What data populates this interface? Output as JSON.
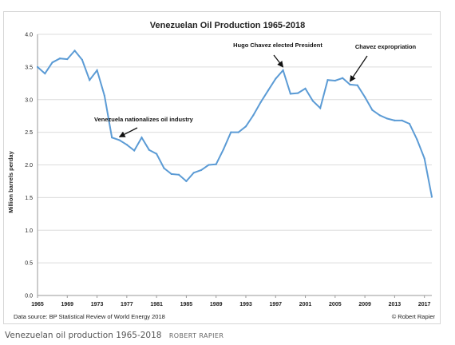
{
  "chart_data": {
    "type": "line",
    "title": "Venezuelan Oil Production 1965-2018",
    "ylabel": "Million barrels perday",
    "xlabel": "",
    "ylim": [
      0,
      4
    ],
    "xlim": [
      1965,
      2018
    ],
    "yticks": [
      "0.0",
      "0.5",
      "1.0",
      "1.5",
      "2.0",
      "2.5",
      "3.0",
      "3.5",
      "4.0"
    ],
    "xticks": [
      "1965",
      "1969",
      "1973",
      "1977",
      "1981",
      "1985",
      "1989",
      "1993",
      "1997",
      "2001",
      "2005",
      "2009",
      "2013",
      "2017"
    ],
    "grid": true,
    "color": "#5b9bd5",
    "series": [
      {
        "x": [
          1965,
          1966,
          1967,
          1968,
          1969,
          1970,
          1971,
          1972,
          1973,
          1974,
          1975,
          1976,
          1977,
          1978,
          1979,
          1980,
          1981,
          1982,
          1983,
          1984,
          1985,
          1986,
          1987,
          1988,
          1989,
          1990,
          1991,
          1992,
          1993,
          1994,
          1995,
          1996,
          1997,
          1998,
          1999,
          2000,
          2001,
          2002,
          2003,
          2004,
          2005,
          2006,
          2007,
          2008,
          2009,
          2010,
          2011,
          2012,
          2013,
          2014,
          2015,
          2016,
          2017,
          2018
        ],
        "values": [
          3.5,
          3.4,
          3.57,
          3.63,
          3.62,
          3.75,
          3.61,
          3.3,
          3.45,
          3.06,
          2.42,
          2.38,
          2.31,
          2.22,
          2.42,
          2.23,
          2.17,
          1.95,
          1.86,
          1.85,
          1.75,
          1.88,
          1.92,
          2.0,
          2.01,
          2.24,
          2.5,
          2.5,
          2.59,
          2.76,
          2.96,
          3.14,
          3.32,
          3.45,
          3.09,
          3.1,
          3.17,
          2.98,
          2.87,
          3.3,
          3.29,
          3.33,
          3.23,
          3.22,
          3.04,
          2.84,
          2.76,
          2.71,
          2.68,
          2.68,
          2.63,
          2.39,
          2.1,
          1.51
        ]
      }
    ],
    "annotations": [
      {
        "text": "Venezuela nationalizes oil industry",
        "x": 1976,
        "y": 2.38
      },
      {
        "text": "Hugo Chavez elected President",
        "x": 1998,
        "y": 3.45
      },
      {
        "text": "Chavez expropriation",
        "x": 2007,
        "y": 3.23
      }
    ],
    "source": "Data source: BP Statistical Review of World Energy 2018",
    "copyright": "© Robert Rapier"
  },
  "caption": {
    "text": "Venezuelan oil production 1965-2018",
    "credit": "ROBERT RAPIER"
  }
}
